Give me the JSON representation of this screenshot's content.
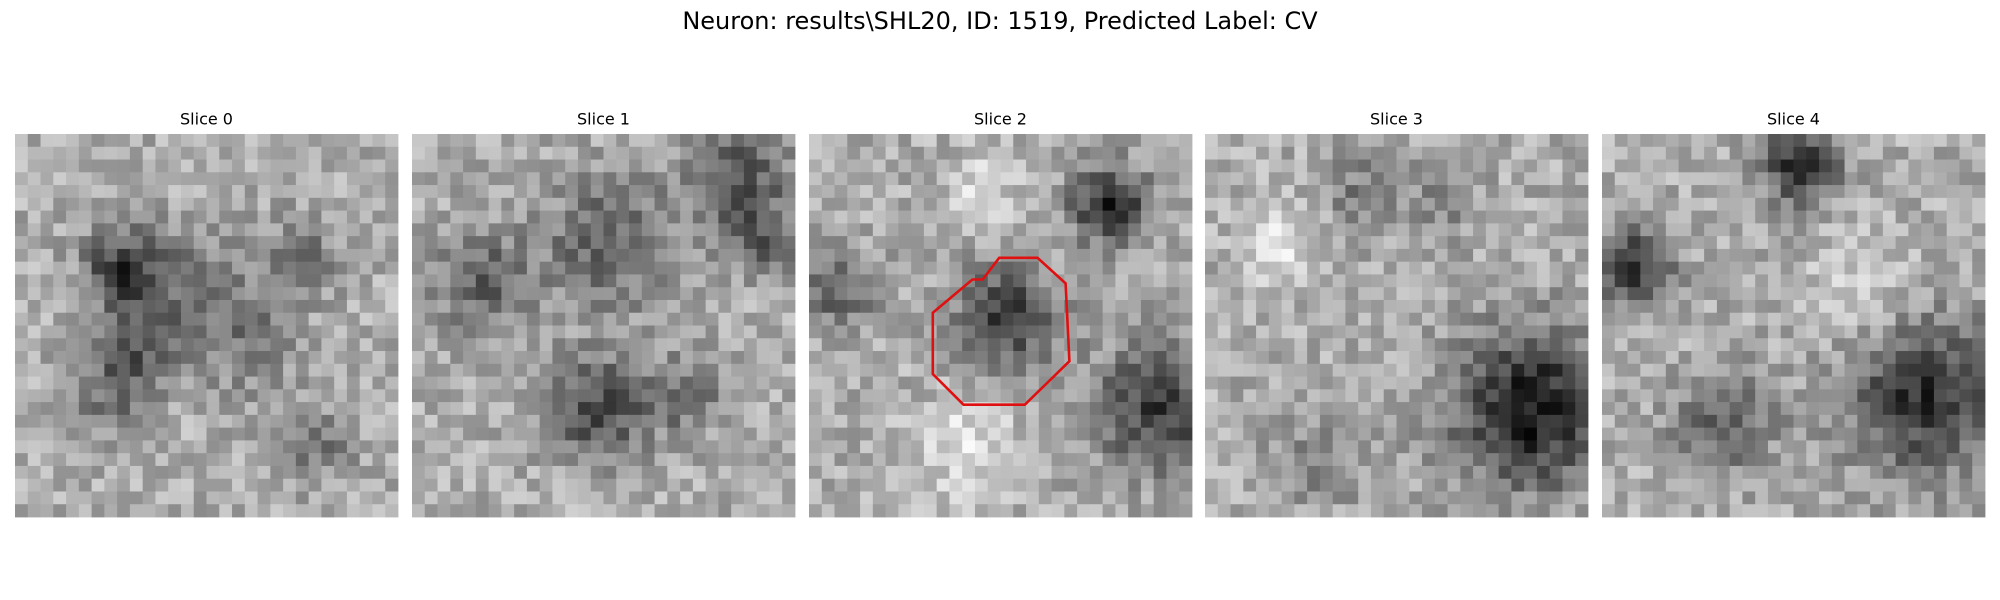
{
  "title": "Neuron: results\\SHL20, ID: 1519, Predicted Label: CV",
  "panels": [
    {
      "title": "Slice 0"
    },
    {
      "title": "Slice 1"
    },
    {
      "title": "Slice 2"
    },
    {
      "title": "Slice 3"
    },
    {
      "title": "Slice 4"
    }
  ]
}
